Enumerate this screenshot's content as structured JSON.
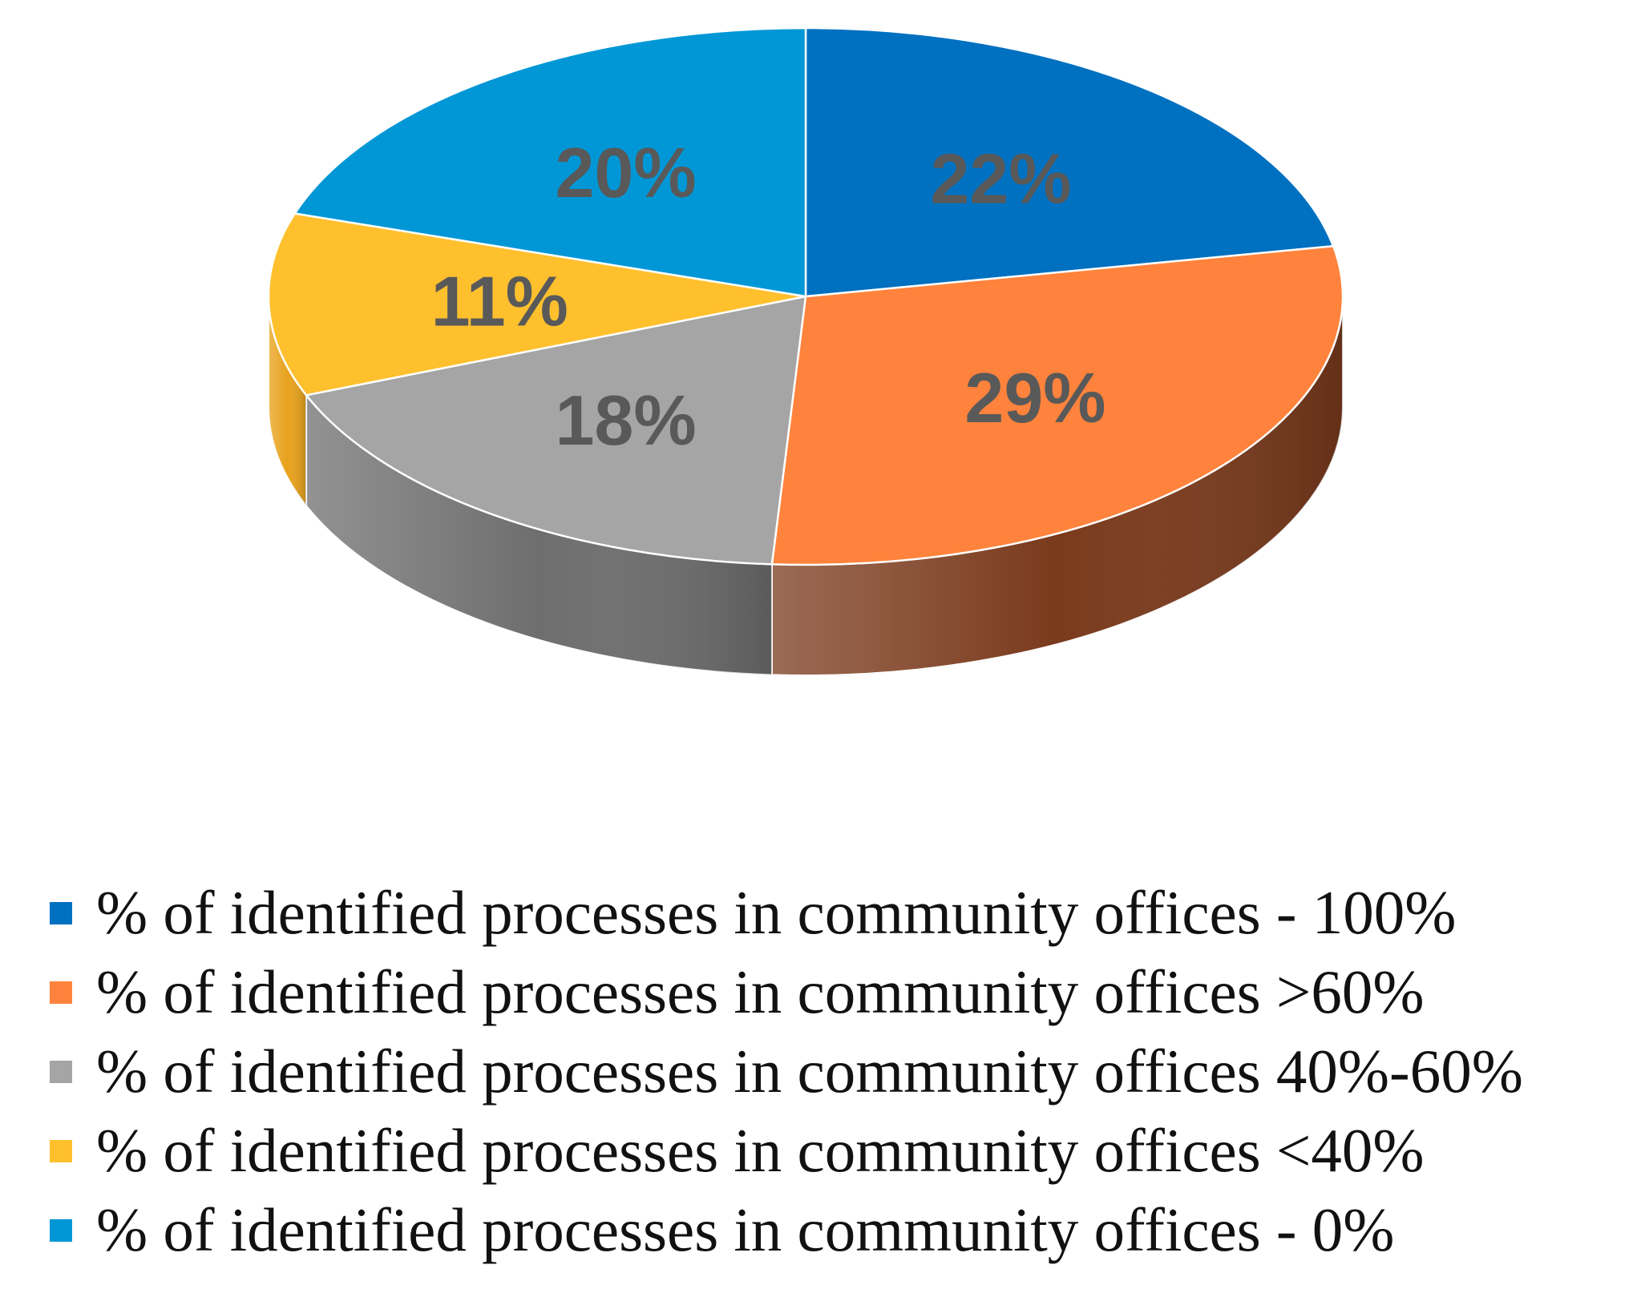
{
  "chart_data": {
    "type": "pie",
    "style": "3d",
    "series": [
      {
        "categories": [
          "% of identified processes in community offices - 100%",
          "% of identified processes in community offices >60%",
          "% of identified processes in community offices 40%-60%",
          "% of identified processes in community offices <40%",
          "% of identified processes in community offices - 0%"
        ],
        "values": [
          22,
          29,
          18,
          11,
          20
        ],
        "labels": [
          "22%",
          "29%",
          "18%",
          "11%",
          "20%"
        ],
        "colors": [
          "#0070C0",
          "#FF833C",
          "#A5A5A5",
          "#FFC02E",
          "#0197D6"
        ],
        "side_colors": [
          "#0057A0",
          "#7A3A1C",
          "#6E6E6E",
          "#E8A21C",
          "#0179B0"
        ]
      }
    ],
    "legend_position": "bottom",
    "label_color": "#595959"
  }
}
